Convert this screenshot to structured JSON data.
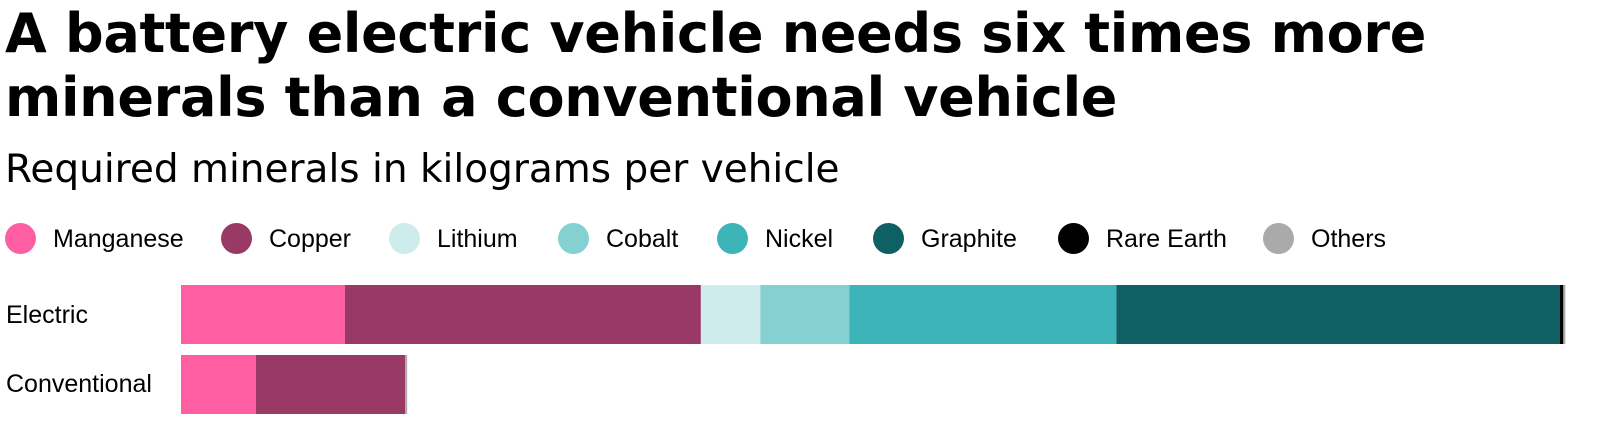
{
  "chart_data": {
    "type": "bar",
    "orientation": "horizontal",
    "stacked": true,
    "title": "A battery electric vehicle needs six times more minerals than a conventional vehicle",
    "subtitle": "Required minerals in kilograms per vehicle",
    "legend_position": "top",
    "grid": false,
    "categories": [
      "Electric",
      "Conventional"
    ],
    "series": [
      {
        "name": "Manganese",
        "color": "#ff5fa2",
        "values": [
          24.5,
          11.2
        ]
      },
      {
        "name": "Copper",
        "color": "#993a66",
        "values": [
          53.2,
          22.3
        ]
      },
      {
        "name": "Lithium",
        "color": "#cdeceb",
        "values": [
          8.9,
          0
        ]
      },
      {
        "name": "Cobalt",
        "color": "#85d0d0",
        "values": [
          13.3,
          0
        ]
      },
      {
        "name": "Nickel",
        "color": "#3db4b7",
        "values": [
          39.9,
          0
        ]
      },
      {
        "name": "Graphite",
        "color": "#0e6064",
        "values": [
          66.3,
          0
        ]
      },
      {
        "name": "Rare Earth",
        "color": "#000000",
        "values": [
          0.5,
          0
        ]
      },
      {
        "name": "Others",
        "color": "#aaaaaa",
        "values": [
          0.3,
          0.3
        ]
      }
    ],
    "xlim": [
      0,
      207
    ]
  }
}
